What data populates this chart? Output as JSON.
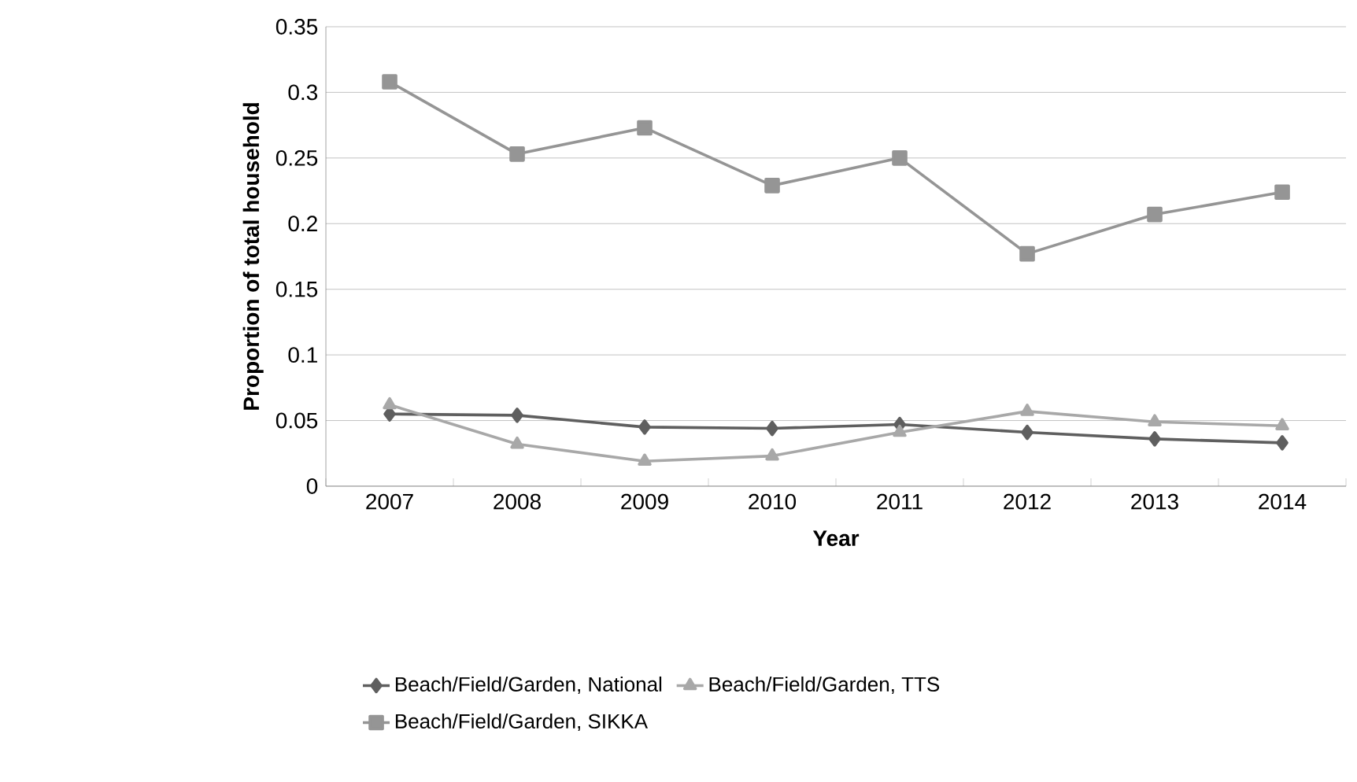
{
  "chart_data": {
    "type": "line",
    "xlabel": "Year",
    "ylabel": "Proportion of total household",
    "categories": [
      "2007",
      "2008",
      "2009",
      "2010",
      "2011",
      "2012",
      "2013",
      "2014"
    ],
    "series": [
      {
        "name": "Beach/Field/Garden, National",
        "color": "#5f5f5f",
        "marker": "diamond",
        "values": [
          0.055,
          0.054,
          0.045,
          0.044,
          0.047,
          0.041,
          0.036,
          0.033
        ]
      },
      {
        "name": "Beach/Field/Garden, TTS",
        "color": "#a8a8a8",
        "marker": "triangle",
        "values": [
          0.062,
          0.032,
          0.019,
          0.023,
          0.041,
          0.057,
          0.049,
          0.046
        ]
      },
      {
        "name": "Beach/Field/Garden, SIKKA",
        "color": "#959595",
        "marker": "square",
        "values": [
          0.308,
          0.253,
          0.273,
          0.229,
          0.25,
          0.177,
          0.207,
          0.224
        ]
      }
    ],
    "ylim": [
      0,
      0.35
    ],
    "yticks": [
      0,
      0.05,
      0.1,
      0.15,
      0.2,
      0.25,
      0.3,
      0.35
    ],
    "grid": "y",
    "legend": "bottom",
    "line_style": "solid"
  }
}
